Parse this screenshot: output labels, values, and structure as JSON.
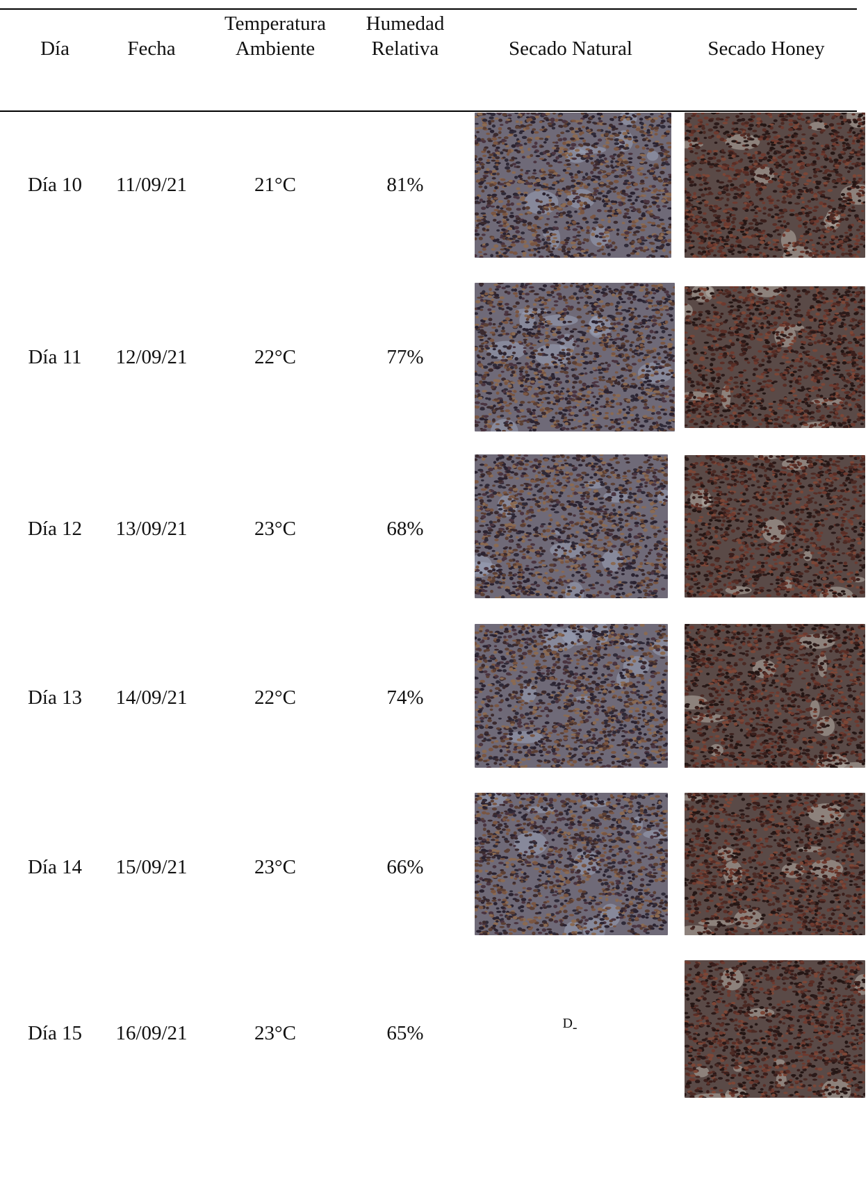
{
  "headers": {
    "day": "Día",
    "date": "Fecha",
    "temp_line1": "Temperatura",
    "temp_line2": "Ambiente",
    "hum_line1": "Humedad",
    "hum_line2": "Relativa",
    "natural": "Secado Natural",
    "honey": "Secado Honey"
  },
  "rows": [
    {
      "day": "Día 10",
      "date": "11/09/21",
      "temp": "21°C",
      "hum": "81%"
    },
    {
      "day": "Día 11",
      "date": "12/09/21",
      "temp": "22°C",
      "hum": "77%"
    },
    {
      "day": "Día 12",
      "date": "13/09/21",
      "temp": "23°C",
      "hum": "68%"
    },
    {
      "day": "Día 13",
      "date": "14/09/21",
      "temp": "22°C",
      "hum": "74%"
    },
    {
      "day": "Día 14",
      "date": "15/09/21",
      "temp": "23°C",
      "hum": "66%"
    },
    {
      "day": "Día 15",
      "date": "16/09/21",
      "temp": "23°C",
      "hum": "65%"
    }
  ],
  "missing_photo_mark": "D",
  "missing_photo_mark_sub": "-",
  "colors": {
    "natural_base": "#4a3a3f",
    "honey_base": "#3d2a28"
  }
}
